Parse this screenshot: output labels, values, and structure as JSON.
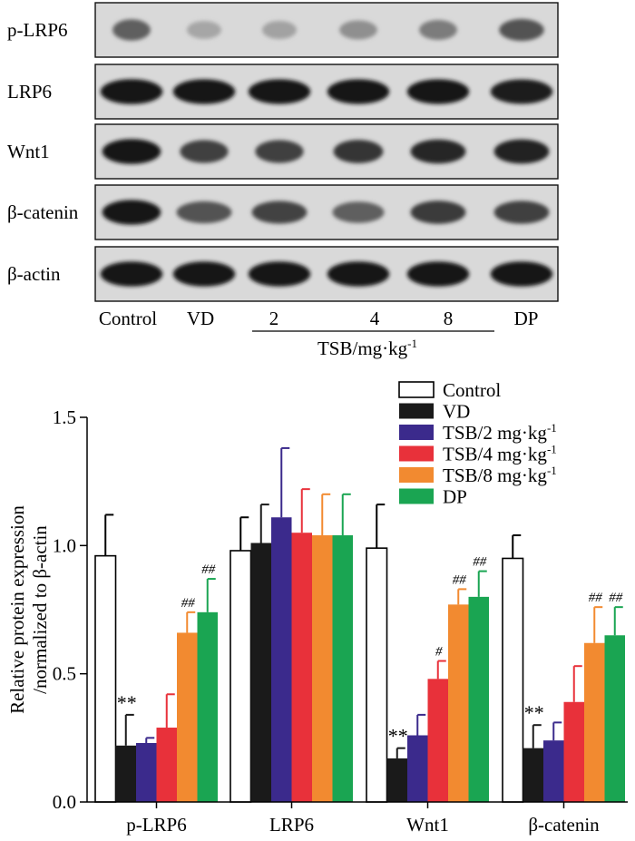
{
  "blot": {
    "rows": [
      {
        "label": "p-LRP6",
        "intensity": [
          0.55,
          0.18,
          0.2,
          0.3,
          0.4,
          0.62
        ],
        "band_width": [
          0.55,
          0.5,
          0.5,
          0.55,
          0.55,
          0.65
        ]
      },
      {
        "label": "LRP6",
        "intensity": [
          0.95,
          0.92,
          0.92,
          0.92,
          0.92,
          0.9
        ],
        "band_width": [
          0.9,
          0.9,
          0.9,
          0.9,
          0.9,
          0.9
        ]
      },
      {
        "label": "Wnt1",
        "intensity": [
          0.95,
          0.72,
          0.72,
          0.78,
          0.85,
          0.88
        ],
        "band_width": [
          0.85,
          0.7,
          0.7,
          0.72,
          0.8,
          0.8
        ]
      },
      {
        "label": "β-catenin",
        "intensity": [
          0.92,
          0.62,
          0.7,
          0.55,
          0.75,
          0.72
        ],
        "band_width": [
          0.85,
          0.8,
          0.8,
          0.75,
          0.8,
          0.8
        ]
      },
      {
        "label": "β-actin",
        "intensity": [
          0.95,
          0.95,
          0.95,
          0.95,
          0.95,
          0.95
        ],
        "band_width": [
          0.9,
          0.9,
          0.9,
          0.9,
          0.9,
          0.9
        ]
      }
    ],
    "lane_labels": [
      "Control",
      "VD",
      "2",
      "4",
      "8",
      "DP"
    ],
    "group_label": "TSB/mg·kg",
    "group_label_sup": "-1"
  },
  "chart_data": {
    "type": "bar",
    "categories": [
      "p-LRP6",
      "LRP6",
      "Wnt1",
      "β-catenin"
    ],
    "ylabel_line1": "Relative protein expression",
    "ylabel_line2": "/normalized to β-actin",
    "ylim": [
      0,
      1.5
    ],
    "yticks": [
      "0.0",
      "0.5",
      "1.0",
      "1.5"
    ],
    "series": [
      {
        "name": "Control",
        "sup": "",
        "color": "#ffffff",
        "values": [
          0.96,
          0.98,
          0.99,
          0.95
        ],
        "errors": [
          0.16,
          0.13,
          0.17,
          0.09
        ],
        "annotations": [
          "",
          "",
          "",
          ""
        ]
      },
      {
        "name": "VD",
        "sup": "",
        "color": "#1a1a1a",
        "values": [
          0.22,
          1.01,
          0.17,
          0.21
        ],
        "errors": [
          0.12,
          0.15,
          0.04,
          0.09
        ],
        "annotations": [
          "**",
          "",
          "**",
          "**"
        ]
      },
      {
        "name": "TSB/2 mg·kg",
        "sup": "-1",
        "color": "#3b2a8c",
        "values": [
          0.23,
          1.11,
          0.26,
          0.24
        ],
        "errors": [
          0.02,
          0.27,
          0.08,
          0.07
        ],
        "annotations": [
          "",
          "",
          "",
          ""
        ]
      },
      {
        "name": "TSB/4 mg·kg",
        "sup": "-1",
        "color": "#e8313a",
        "values": [
          0.29,
          1.05,
          0.48,
          0.39
        ],
        "errors": [
          0.13,
          0.17,
          0.07,
          0.14
        ],
        "annotations": [
          "",
          "",
          "#",
          ""
        ]
      },
      {
        "name": "TSB/8 mg·kg",
        "sup": "-1",
        "color": "#f28a30",
        "values": [
          0.66,
          1.04,
          0.77,
          0.62
        ],
        "errors": [
          0.08,
          0.16,
          0.06,
          0.14
        ],
        "annotations": [
          "##",
          "",
          "##",
          "##"
        ]
      },
      {
        "name": "DP",
        "sup": "",
        "color": "#1aa552",
        "values": [
          0.74,
          1.04,
          0.8,
          0.65
        ],
        "errors": [
          0.13,
          0.16,
          0.1,
          0.11
        ],
        "annotations": [
          "##",
          "",
          "##",
          "##"
        ]
      }
    ]
  }
}
